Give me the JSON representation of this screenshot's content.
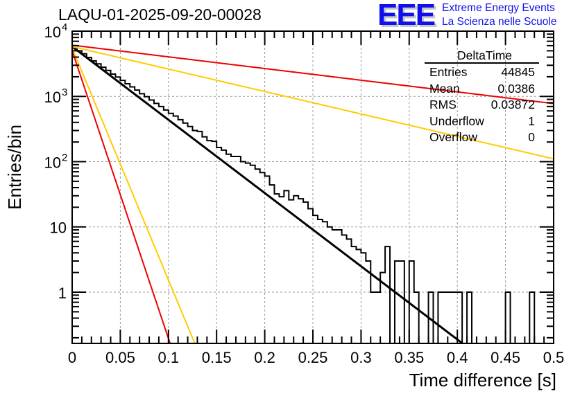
{
  "header": {
    "run_title": "LAQU-01-2025-09-20-00028",
    "logo": {
      "mark": "EEE",
      "line1": "Extreme Energy Events",
      "line2": "La Scienza nelle Scuole"
    }
  },
  "stats_box": {
    "title": "DeltaTime",
    "rows": [
      {
        "label": "Entries",
        "value": "44845"
      },
      {
        "label": "Mean",
        "value": "0.0386"
      },
      {
        "label": "RMS",
        "value": "0.03872"
      },
      {
        "label": "Underflow",
        "value": "1"
      },
      {
        "label": "Overflow",
        "value": "0"
      }
    ]
  },
  "colors": {
    "histogram": "#000000",
    "fit": "#000000",
    "red_curves": "#ee0000",
    "yellow_curves": "#ffcc00",
    "grid": "#999999"
  },
  "chart_data": {
    "type": "histogram",
    "title": "LAQU-01-2025-09-20-00028",
    "xlabel": "Time difference [s]",
    "ylabel": "Entries/bin",
    "xlim": [
      0,
      0.5
    ],
    "ylim": [
      0.164,
      10000
    ],
    "yscale": "log",
    "grid": true,
    "bin_width": 0.005,
    "x_ticks": [
      "0",
      "0.05",
      "0.1",
      "0.15",
      "0.2",
      "0.25",
      "0.3",
      "0.35",
      "0.4",
      "0.45",
      "0.5"
    ],
    "x_tick_values": [
      0,
      0.05,
      0.1,
      0.15,
      0.2,
      0.25,
      0.3,
      0.35,
      0.4,
      0.45,
      0.5
    ],
    "y_ticks": [
      {
        "value": 10000,
        "base": "10",
        "exp": "4"
      },
      {
        "value": 1000,
        "base": "10",
        "exp": "3"
      },
      {
        "value": 100,
        "base": "10",
        "exp": "2"
      },
      {
        "value": 10,
        "base": "10",
        "exp": ""
      },
      {
        "value": 1,
        "base": "1",
        "exp": ""
      }
    ],
    "bin_counts": [
      5600,
      5000,
      4500,
      3950,
      3500,
      3150,
      2800,
      2500,
      2200,
      1980,
      1760,
      1560,
      1400,
      1250,
      1100,
      990,
      880,
      780,
      700,
      620,
      550,
      500,
      440,
      390,
      345,
      300,
      290,
      240,
      210,
      205,
      165,
      150,
      130,
      120,
      120,
      100,
      95,
      88,
      77,
      68,
      60,
      44,
      32,
      29,
      36,
      26,
      30,
      27,
      24,
      19,
      15,
      13,
      12,
      10,
      9,
      9,
      7.5,
      6.5,
      5,
      4.5,
      4,
      3,
      1,
      1,
      2,
      5,
      0,
      3,
      3,
      0,
      3,
      1,
      0,
      0,
      1,
      0,
      1,
      1,
      1,
      1,
      1,
      0,
      1,
      0,
      0,
      0,
      0,
      0,
      0,
      0,
      1,
      0,
      0,
      0,
      0,
      1,
      0,
      0,
      0,
      0
    ],
    "series": [
      {
        "name": "exponential fit",
        "color": "#000000",
        "A": 5800,
        "tau": 0.0387
      },
      {
        "name": "red slow",
        "color": "#ee0000",
        "A": 6100,
        "tau": 0.2425
      },
      {
        "name": "yellow slow",
        "color": "#ffcc00",
        "A": 5800,
        "tau": 0.1262
      },
      {
        "name": "yellow fast",
        "color": "#ffcc00",
        "A": 5500,
        "tau": 0.01222
      },
      {
        "name": "red fast",
        "color": "#ee0000",
        "A": 5000,
        "tau": 0.00985
      }
    ]
  }
}
